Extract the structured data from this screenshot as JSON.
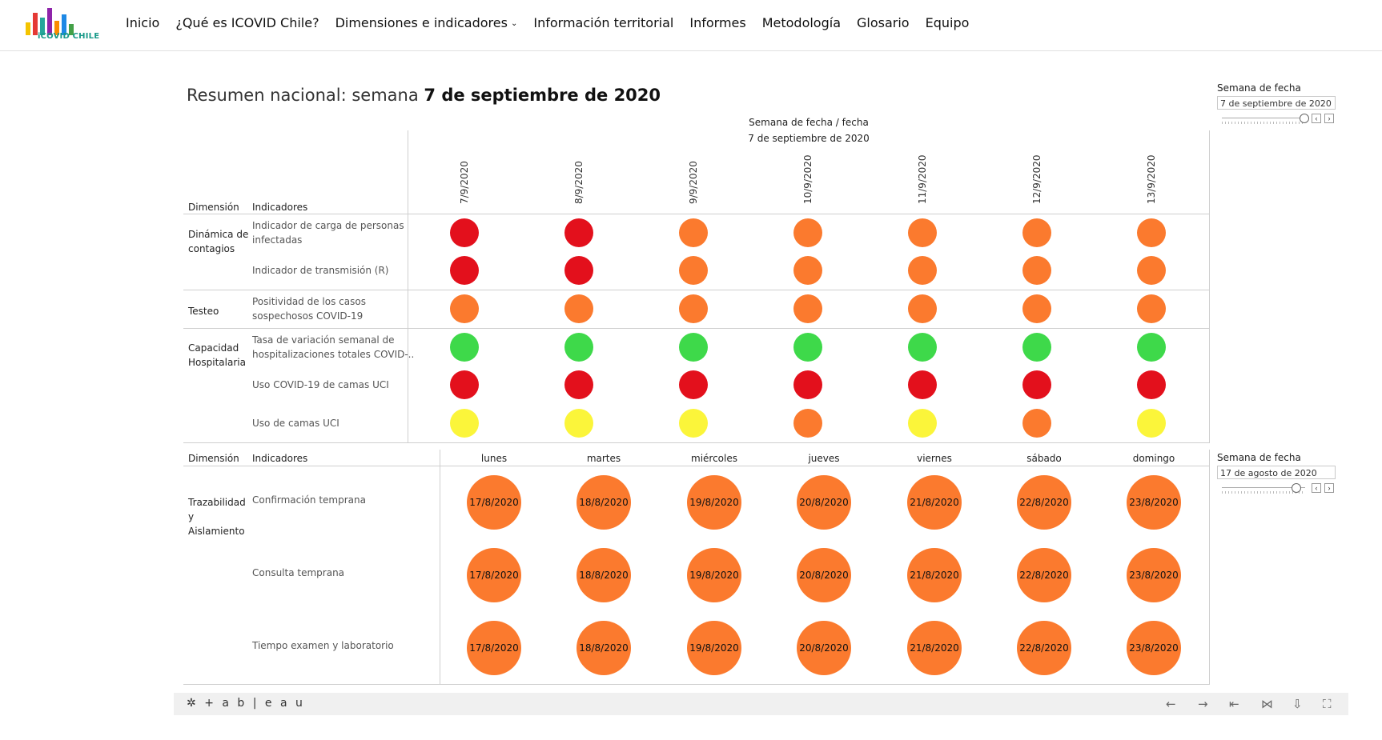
{
  "header": {
    "logo_text": "iCOVID CHILE",
    "nav": [
      {
        "label": "Inicio"
      },
      {
        "label": "¿Qué es ICOVID Chile?"
      },
      {
        "label": "Dimensiones e indicadores"
      },
      {
        "label": "Información territorial"
      },
      {
        "label": "Informes"
      },
      {
        "label": "Metodología"
      },
      {
        "label": "Glosario"
      },
      {
        "label": "Equipo"
      }
    ],
    "dropdown_glyph": "⌄"
  },
  "dashboard": {
    "title_prefix": "Resumen nacional: semana ",
    "title_bold": "7 de septiembre de 2020",
    "caption_line1": "Semana de fecha  /  fecha",
    "caption_line2": "7 de septiembre de 2020",
    "table1": {
      "hdr_dimension": "Dimensión",
      "hdr_indicadores": "Indicadores",
      "dates": [
        "7/9/2020",
        "8/9/2020",
        "9/9/2020",
        "10/9/2020",
        "11/9/2020",
        "12/9/2020",
        "13/9/2020"
      ],
      "dimensions": [
        {
          "label_1": "Dinámica de",
          "label_2": "contagios"
        },
        {
          "label_1": "Testeo",
          "label_2": ""
        },
        {
          "label_1": "Capacidad",
          "label_2": "Hospitalaria"
        }
      ],
      "rows": [
        {
          "line1": "Indicador de carga de personas",
          "line2": "infectadas",
          "statuses": [
            "red",
            "red",
            "orange",
            "orange",
            "orange",
            "orange",
            "orange"
          ]
        },
        {
          "line1": "Indicador de transmisión (R)",
          "line2": "",
          "statuses": [
            "red",
            "red",
            "orange",
            "orange",
            "orange",
            "orange",
            "orange"
          ]
        },
        {
          "line1": "Positividad de los casos",
          "line2": "sospechosos COVID-19",
          "statuses": [
            "orange",
            "orange",
            "orange",
            "orange",
            "orange",
            "orange",
            "orange"
          ]
        },
        {
          "line1": "Tasa de variación semanal de",
          "line2": "hospitalizaciones totales COVID-..",
          "statuses": [
            "green",
            "green",
            "green",
            "green",
            "green",
            "green",
            "green"
          ]
        },
        {
          "line1": "Uso COVID-19 de camas UCI",
          "line2": "",
          "statuses": [
            "red",
            "red",
            "red",
            "red",
            "red",
            "red",
            "red"
          ]
        },
        {
          "line1": "Uso de camas UCI",
          "line2": "",
          "statuses": [
            "yellow",
            "yellow",
            "yellow",
            "orange",
            "yellow",
            "orange",
            "yellow"
          ]
        }
      ]
    },
    "table2": {
      "hdr_dimension": "Dimensión",
      "hdr_indicadores": "Indicadores",
      "days": [
        "lunes",
        "martes",
        "miércoles",
        "jueves",
        "viernes",
        "sábado",
        "domingo"
      ],
      "dimension_lines": [
        "Trazabilidad",
        "y",
        "Aislamiento"
      ],
      "rows": [
        {
          "label": "Confirmación temprana",
          "dates": [
            "17/8/2020",
            "18/8/2020",
            "19/8/2020",
            "20/8/2020",
            "21/8/2020",
            "22/8/2020",
            "23/8/2020"
          ]
        },
        {
          "label": "Consulta temprana",
          "dates": [
            "17/8/2020",
            "18/8/2020",
            "19/8/2020",
            "20/8/2020",
            "21/8/2020",
            "22/8/2020",
            "23/8/2020"
          ]
        },
        {
          "label": "Tiempo examen y laboratorio",
          "dates": [
            "17/8/2020",
            "18/8/2020",
            "19/8/2020",
            "20/8/2020",
            "21/8/2020",
            "22/8/2020",
            "23/8/2020"
          ]
        }
      ]
    },
    "filters": [
      {
        "label": "Semana de fecha",
        "value": "7 de septiembre de 2020",
        "slider_fraction": 0.98
      },
      {
        "label": "Semana de fecha",
        "value": "17 de agosto de 2020",
        "slider_fraction": 0.88
      }
    ],
    "filter_prev": "‹",
    "filter_next": "›"
  },
  "colors": {
    "red": "#e3101c",
    "orange": "#fb7a2e",
    "green": "#3ed94a",
    "yellow": "#fbf53a",
    "logo_bars": [
      "#f4c400",
      "#e53935",
      "#26a69a",
      "#8e24aa",
      "#fb8c00",
      "#1e88e5",
      "#43a047"
    ]
  },
  "footer": {
    "tableau_text": "+ a b | e a u",
    "icons": [
      "←",
      "→",
      "⇤",
      "⋈",
      "⇩",
      "⛶"
    ]
  }
}
